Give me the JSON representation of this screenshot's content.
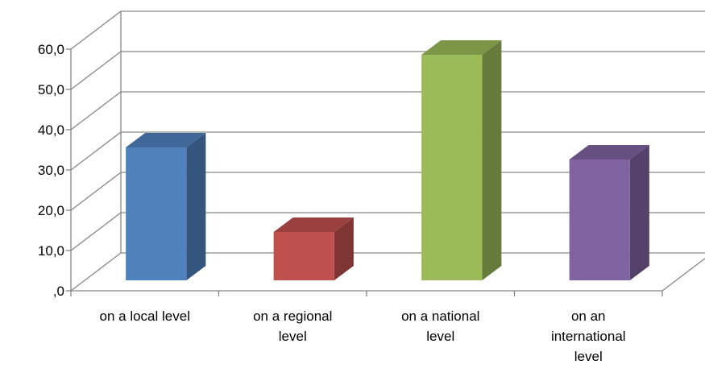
{
  "chart_data": {
    "type": "bar",
    "style": "3d-column",
    "categories": [
      [
        "on a local level"
      ],
      [
        "on a regional",
        "level"
      ],
      [
        "on a national",
        "level"
      ],
      [
        "on an",
        "international",
        "level"
      ]
    ],
    "values": [
      33,
      12,
      56,
      30
    ],
    "colors": [
      "#4f81bd",
      "#c0504d",
      "#9bbb59",
      "#8064a2"
    ],
    "ylim": [
      0,
      60
    ],
    "yticks": [
      ",0",
      "10,0",
      "20,0",
      "30,0",
      "40,0",
      "50,0",
      "60,0"
    ],
    "grid": true,
    "legend": "none"
  }
}
